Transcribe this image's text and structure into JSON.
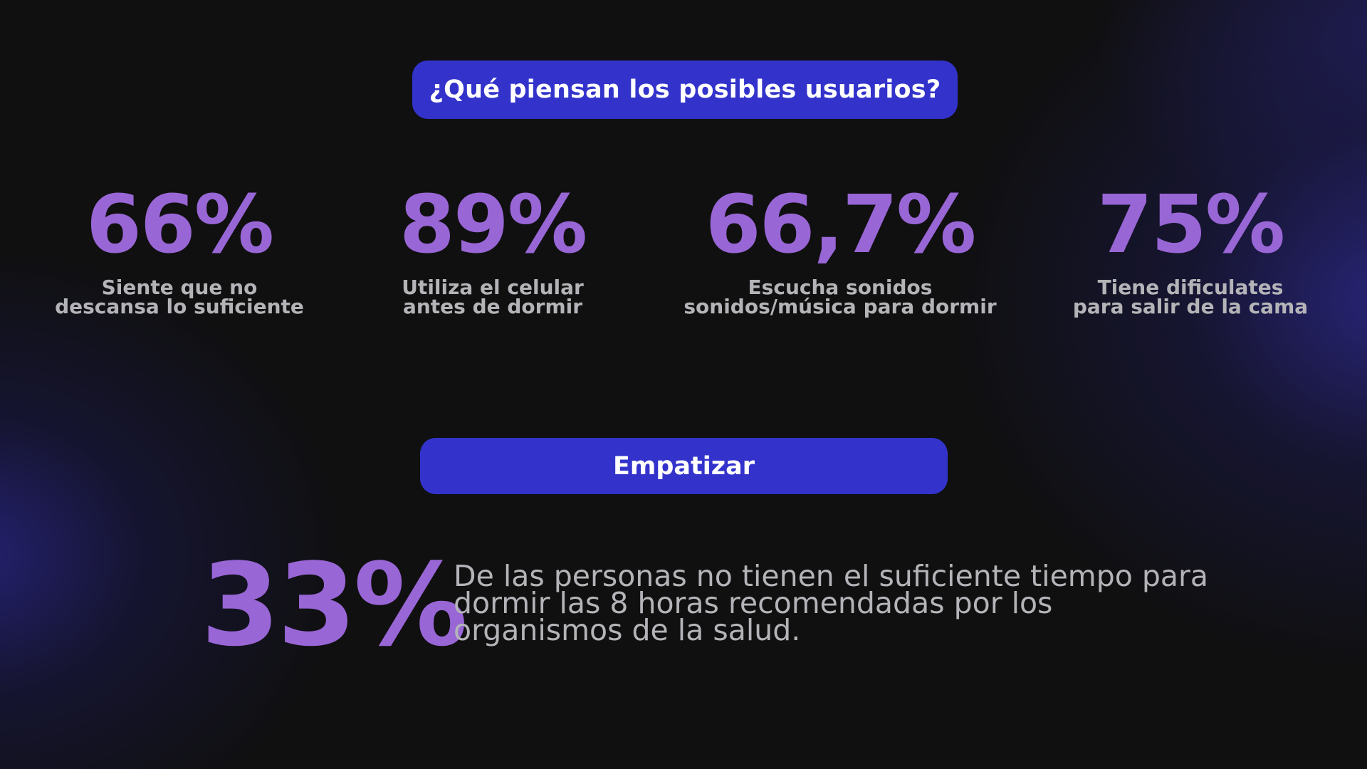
{
  "header": {
    "title": "¿Qué piensan los posibles usuarios?"
  },
  "stats": [
    {
      "value": "66%",
      "label_line1": "Siente que no",
      "label_line2": "descansa lo suficiente"
    },
    {
      "value": "89%",
      "label_line1": "Utiliza el celular",
      "label_line2": "antes de dormir"
    },
    {
      "value": "66,7%",
      "label_line1": "Escucha sonidos",
      "label_line2": "sonidos/música para dormir"
    },
    {
      "value": "75%",
      "label_line1": "Tiene dificulates",
      "label_line2": "para salir de la cama"
    }
  ],
  "section": {
    "label": "Empatizar"
  },
  "highlight": {
    "value": "33%",
    "text": "De las personas no tienen el suficiente tiempo para dormir las 8 horas recomendadas por los organismos de la salud."
  },
  "colors": {
    "background": "#101011",
    "accent": "#3333cc",
    "stat": "#9966d6",
    "text_muted": "#b4b4b8"
  }
}
